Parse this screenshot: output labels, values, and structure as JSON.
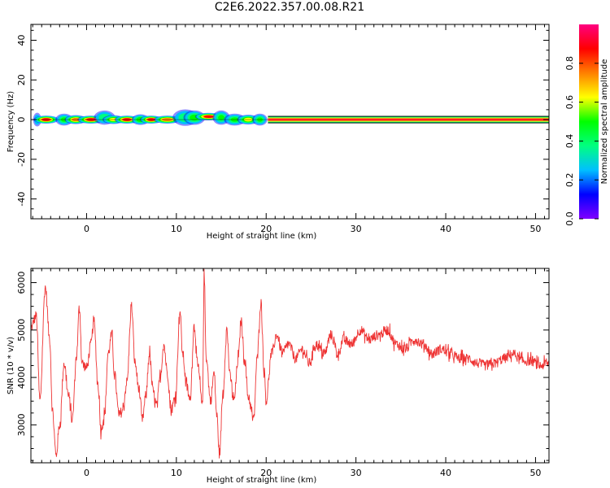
{
  "title": "C2E6.2022.357.00.08.R21",
  "chart_data": [
    {
      "type": "heatmap",
      "xlabel": "Height of straight line (km)",
      "ylabel": "Frequency (Hz)",
      "xlim": [
        -6.2,
        51.5
      ],
      "ylim": [
        -50,
        48
      ],
      "xticks": [
        0,
        10,
        20,
        30,
        40,
        50
      ],
      "yticks": [
        -40,
        -20,
        0,
        20,
        40
      ],
      "colorbar": {
        "label": "Normalized spectral amplitude",
        "range": [
          0,
          1
        ],
        "ticks": [
          "0.0",
          "0.2",
          "0.4",
          "0.6",
          "0.8"
        ],
        "tick_values": [
          0.0,
          0.2,
          0.4,
          0.6,
          0.8
        ],
        "colormap": [
          "#8000ff",
          "#0000ff",
          "#00bfff",
          "#00ff80",
          "#00ff00",
          "#ffff00",
          "#ff8000",
          "#ff0000",
          "#ff0080"
        ]
      },
      "blobs": [
        {
          "x": -5.5,
          "f": 0,
          "amp": 0.35,
          "wx": 0.4,
          "wf": 3
        },
        {
          "x": -4.5,
          "f": 0,
          "amp": 0.95,
          "wx": 1.1,
          "wf": 1.6
        },
        {
          "x": -2.5,
          "f": 0,
          "amp": 0.5,
          "wx": 0.8,
          "wf": 2.5
        },
        {
          "x": -1.2,
          "f": 0,
          "amp": 0.85,
          "wx": 1.0,
          "wf": 1.8
        },
        {
          "x": 0.5,
          "f": 0,
          "amp": 0.95,
          "wx": 1.2,
          "wf": 1.6
        },
        {
          "x": 2.0,
          "f": 1,
          "amp": 0.45,
          "wx": 1.0,
          "wf": 3
        },
        {
          "x": 3.0,
          "f": 0,
          "amp": 0.7,
          "wx": 1.0,
          "wf": 1.8
        },
        {
          "x": 4.5,
          "f": 0,
          "amp": 0.95,
          "wx": 1.1,
          "wf": 1.6
        },
        {
          "x": 6.0,
          "f": 0,
          "amp": 0.6,
          "wx": 0.8,
          "wf": 2.2
        },
        {
          "x": 7.2,
          "f": 0,
          "amp": 0.95,
          "wx": 1.0,
          "wf": 1.6
        },
        {
          "x": 9.0,
          "f": 0,
          "amp": 0.9,
          "wx": 1.2,
          "wf": 1.6
        },
        {
          "x": 11.0,
          "f": 1,
          "amp": 0.45,
          "wx": 1.2,
          "wf": 3.5
        },
        {
          "x": 12.0,
          "f": 1,
          "amp": 0.55,
          "wx": 1.0,
          "wf": 3
        },
        {
          "x": 13.6,
          "f": 1.5,
          "amp": 0.95,
          "wx": 1.2,
          "wf": 1.5
        },
        {
          "x": 15.0,
          "f": 1,
          "amp": 0.5,
          "wx": 0.8,
          "wf": 3
        },
        {
          "x": 16.5,
          "f": 0,
          "amp": 0.5,
          "wx": 1.0,
          "wf": 2.5
        },
        {
          "x": 18.0,
          "f": 0,
          "amp": 0.7,
          "wx": 1.0,
          "wf": 2
        },
        {
          "x": 19.3,
          "f": 0,
          "amp": 0.5,
          "wx": 0.7,
          "wf": 2.5
        }
      ],
      "band": {
        "x_start": 20.2,
        "x_end": 51.5,
        "f": 0
      }
    },
    {
      "type": "line",
      "xlabel": "Height of straight line (km)",
      "ylabel": "SNR (10 * v/v)",
      "xlim": [
        -6.2,
        51.5
      ],
      "ylim": [
        2200,
        6300
      ],
      "xticks": [
        0,
        10,
        20,
        30,
        40,
        50
      ],
      "yticks": [
        3000,
        4000,
        5000,
        6000
      ],
      "series_color": "#ee3333",
      "keypoints": [
        [
          -6.2,
          5050
        ],
        [
          -5.6,
          5300
        ],
        [
          -5.2,
          3500
        ],
        [
          -4.6,
          5900
        ],
        [
          -4.1,
          4800
        ],
        [
          -3.8,
          3300
        ],
        [
          -3.4,
          2350
        ],
        [
          -3.0,
          3000
        ],
        [
          -2.5,
          4300
        ],
        [
          -2.0,
          3600
        ],
        [
          -1.6,
          3100
        ],
        [
          -1.1,
          4500
        ],
        [
          -0.8,
          5500
        ],
        [
          -0.5,
          4300
        ],
        [
          0.0,
          4200
        ],
        [
          0.5,
          4700
        ],
        [
          0.8,
          5200
        ],
        [
          1.3,
          3800
        ],
        [
          1.6,
          2900
        ],
        [
          2.0,
          3200
        ],
        [
          2.4,
          4500
        ],
        [
          2.8,
          4900
        ],
        [
          3.1,
          4100
        ],
        [
          3.6,
          3200
        ],
        [
          4.0,
          3300
        ],
        [
          4.5,
          3900
        ],
        [
          5.0,
          5500
        ],
        [
          5.4,
          4300
        ],
        [
          5.8,
          3800
        ],
        [
          6.2,
          3100
        ],
        [
          6.6,
          3600
        ],
        [
          7.0,
          4500
        ],
        [
          7.4,
          3700
        ],
        [
          7.8,
          3400
        ],
        [
          8.2,
          4000
        ],
        [
          8.6,
          4700
        ],
        [
          9.0,
          4100
        ],
        [
          9.4,
          3300
        ],
        [
          9.9,
          3600
        ],
        [
          10.4,
          5400
        ],
        [
          10.7,
          4500
        ],
        [
          11.1,
          3900
        ],
        [
          11.5,
          3500
        ],
        [
          12.0,
          5100
        ],
        [
          12.4,
          4200
        ],
        [
          12.9,
          3400
        ],
        [
          13.1,
          6200
        ],
        [
          13.3,
          4500
        ],
        [
          13.8,
          3500
        ],
        [
          14.2,
          4100
        ],
        [
          14.5,
          3200
        ],
        [
          14.8,
          2400
        ],
        [
          15.2,
          3700
        ],
        [
          15.6,
          5000
        ],
        [
          16.0,
          4000
        ],
        [
          16.4,
          3500
        ],
        [
          16.9,
          4400
        ],
        [
          17.2,
          5200
        ],
        [
          17.6,
          4400
        ],
        [
          18.0,
          3600
        ],
        [
          18.6,
          3100
        ],
        [
          19.0,
          4400
        ],
        [
          19.4,
          5600
        ],
        [
          19.8,
          4100
        ],
        [
          20.0,
          3500
        ],
        [
          20.6,
          4500
        ],
        [
          21.2,
          4900
        ],
        [
          21.8,
          4500
        ],
        [
          22.5,
          4700
        ],
        [
          23.3,
          4400
        ],
        [
          24.0,
          4600
        ],
        [
          24.8,
          4300
        ],
        [
          25.5,
          4700
        ],
        [
          26.5,
          4500
        ],
        [
          27.2,
          4900
        ],
        [
          28.0,
          4500
        ],
        [
          28.6,
          4800
        ],
        [
          29.5,
          4700
        ],
        [
          30.5,
          5000
        ],
        [
          31.5,
          4800
        ],
        [
          32.5,
          4900
        ],
        [
          33.5,
          5000
        ],
        [
          34.5,
          4700
        ],
        [
          35.5,
          4600
        ],
        [
          36.5,
          4800
        ],
        [
          37.5,
          4700
        ],
        [
          38.5,
          4500
        ],
        [
          39.5,
          4600
        ],
        [
          40.5,
          4500
        ],
        [
          41.5,
          4400
        ],
        [
          42.5,
          4400
        ],
        [
          43.5,
          4300
        ],
        [
          44.5,
          4250
        ],
        [
          45.5,
          4300
        ],
        [
          46.5,
          4400
        ],
        [
          47.5,
          4500
        ],
        [
          48.5,
          4350
        ],
        [
          49.5,
          4350
        ],
        [
          50.5,
          4250
        ],
        [
          51.5,
          4300
        ]
      ]
    }
  ]
}
